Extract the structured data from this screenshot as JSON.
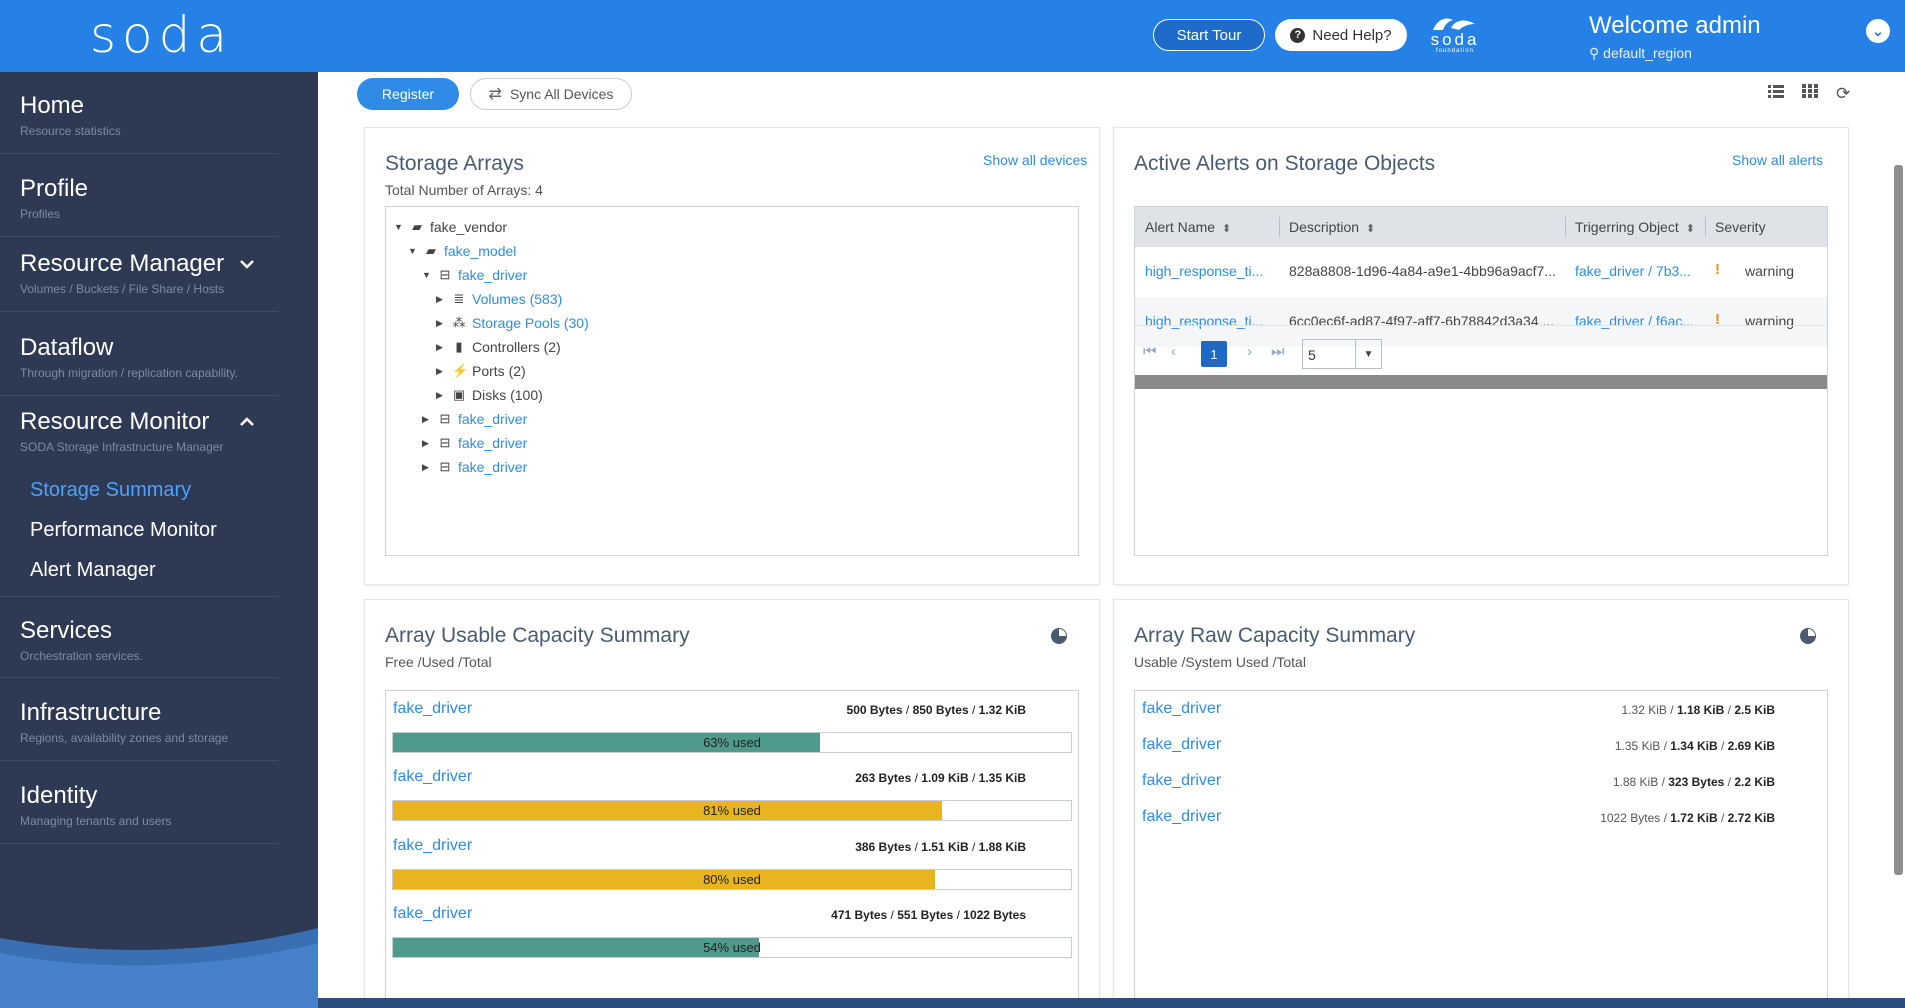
{
  "header": {
    "logo": "soda",
    "start_tour": "Start Tour",
    "need_help": "Need Help?",
    "foundation_logo_word": "soda",
    "foundation_logo_sub": "foundation",
    "welcome": "Welcome admin",
    "region": "default_region"
  },
  "sidebar": {
    "home": {
      "title": "Home",
      "subtitle": "Resource statistics"
    },
    "profile": {
      "title": "Profile",
      "subtitle": "Profiles"
    },
    "resource_manager": {
      "title": "Resource Manager",
      "subtitle": "Volumes / Buckets / File Share / Hosts"
    },
    "dataflow": {
      "title": "Dataflow",
      "subtitle": "Through migration / replication capability."
    },
    "resource_monitor": {
      "title": "Resource Monitor",
      "subtitle": "SODA Storage Infrastructure Manager"
    },
    "sub_items": [
      "Storage Summary",
      "Performance Monitor",
      "Alert Manager"
    ],
    "services": {
      "title": "Services",
      "subtitle": "Orchestration services."
    },
    "infrastructure": {
      "title": "Infrastructure",
      "subtitle": "Regions, availability zones and storage"
    },
    "identity": {
      "title": "Identity",
      "subtitle": "Managing tenants and users"
    }
  },
  "toolbar": {
    "register": "Register",
    "sync": "Sync All Devices"
  },
  "storage_arrays": {
    "title": "Storage Arrays",
    "subtitle": "Total Number of Arrays: 4",
    "link": "Show all devices",
    "tree": {
      "vendor": "fake_vendor",
      "model": "fake_model",
      "driver": "fake_driver",
      "children": [
        "Volumes (583)",
        "Storage Pools (30)",
        "Controllers (2)",
        "Ports (2)",
        "Disks (100)"
      ],
      "other_drivers": [
        "fake_driver",
        "fake_driver",
        "fake_driver"
      ]
    }
  },
  "alerts": {
    "title": "Active Alerts on Storage Objects",
    "link": "Show all alerts",
    "columns": [
      "Alert Name",
      "Description",
      "Trigerring Object",
      "Severity"
    ],
    "rows": [
      {
        "name": "high_response_ti...",
        "description": "828a8808-1d96-4a84-a9e1-4bb96a9acf7...",
        "object": "fake_driver / 7b3...",
        "severity": "warning"
      },
      {
        "name": "high_response_ti...",
        "description": "6cc0ec6f-ad87-4f97-aff7-6b78842d3a34 ...",
        "object": "fake_driver / f6ac...",
        "severity": "warning"
      }
    ],
    "page": "1",
    "page_size": "5"
  },
  "usable": {
    "title": "Array Usable Capacity Summary",
    "subtitle": "Free /Used /Total",
    "rows": [
      {
        "name": "fake_driver",
        "free": "500 Bytes",
        "used": "850 Bytes",
        "total": "1.32 KiB",
        "pct": 63,
        "label": "63% used",
        "color": "#4f9a8c"
      },
      {
        "name": "fake_driver",
        "free": "263 Bytes",
        "used": "1.09 KiB",
        "total": "1.35 KiB",
        "pct": 81,
        "label": "81% used",
        "color": "#e8b41f"
      },
      {
        "name": "fake_driver",
        "free": "386 Bytes",
        "used": "1.51 KiB",
        "total": "1.88 KiB",
        "pct": 80,
        "label": "80% used",
        "color": "#e8b41f"
      },
      {
        "name": "fake_driver",
        "free": "471 Bytes",
        "used": "551 Bytes",
        "total": "1022 Bytes",
        "pct": 54,
        "label": "54% used",
        "color": "#4f9a8c"
      }
    ]
  },
  "raw": {
    "title": "Array Raw Capacity Summary",
    "subtitle": "Usable /System Used /Total",
    "rows": [
      {
        "name": "fake_driver",
        "usable": "1.32 KiB",
        "system": "1.18 KiB",
        "total": "2.5 KiB"
      },
      {
        "name": "fake_driver",
        "usable": "1.35 KiB",
        "system": "1.34 KiB",
        "total": "2.69 KiB"
      },
      {
        "name": "fake_driver",
        "usable": "1.88 KiB",
        "system": "323 Bytes",
        "total": "2.2 KiB"
      },
      {
        "name": "fake_driver",
        "usable": "1022 Bytes",
        "system": "1.72 KiB",
        "total": "2.72 KiB"
      }
    ]
  }
}
